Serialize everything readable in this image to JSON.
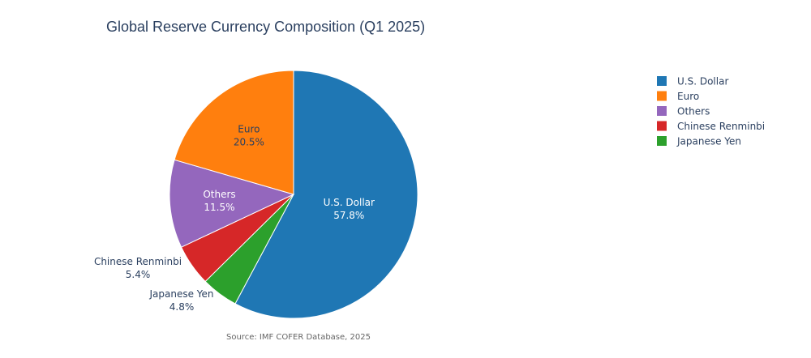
{
  "chart_data": {
    "type": "pie",
    "title": "Global Reserve Currency Composition (Q1 2025)",
    "annotation": "Source: IMF COFER Database, 2025",
    "direction": "clockwise",
    "start_angle_deg": 0,
    "slices": [
      {
        "label": "U.S. Dollar",
        "value": 57.8,
        "value_text": "57.8%",
        "color": "#1f77b4",
        "text_color": "#ffffff",
        "label_position": "inside"
      },
      {
        "label": "Japanese Yen",
        "value": 4.8,
        "value_text": "4.8%",
        "color": "#2ca02c",
        "text_color": "#2a3f5f",
        "label_position": "outside"
      },
      {
        "label": "Chinese Renminbi",
        "value": 5.4,
        "value_text": "5.4%",
        "color": "#d62728",
        "text_color": "#2a3f5f",
        "label_position": "outside"
      },
      {
        "label": "Others",
        "value": 11.5,
        "value_text": "11.5%",
        "color": "#9467bd",
        "text_color": "#ffffff",
        "label_position": "inside"
      },
      {
        "label": "Euro",
        "value": 20.5,
        "value_text": "20.5%",
        "color": "#ff7f0e",
        "text_color": "#2a3f5f",
        "label_position": "inside"
      }
    ],
    "legend": {
      "position": "top-right",
      "items": [
        {
          "label": "U.S. Dollar",
          "color": "#1f77b4"
        },
        {
          "label": "Euro",
          "color": "#ff7f0e"
        },
        {
          "label": "Others",
          "color": "#9467bd"
        },
        {
          "label": "Chinese Renminbi",
          "color": "#d62728"
        },
        {
          "label": "Japanese Yen",
          "color": "#2ca02c"
        }
      ]
    }
  }
}
